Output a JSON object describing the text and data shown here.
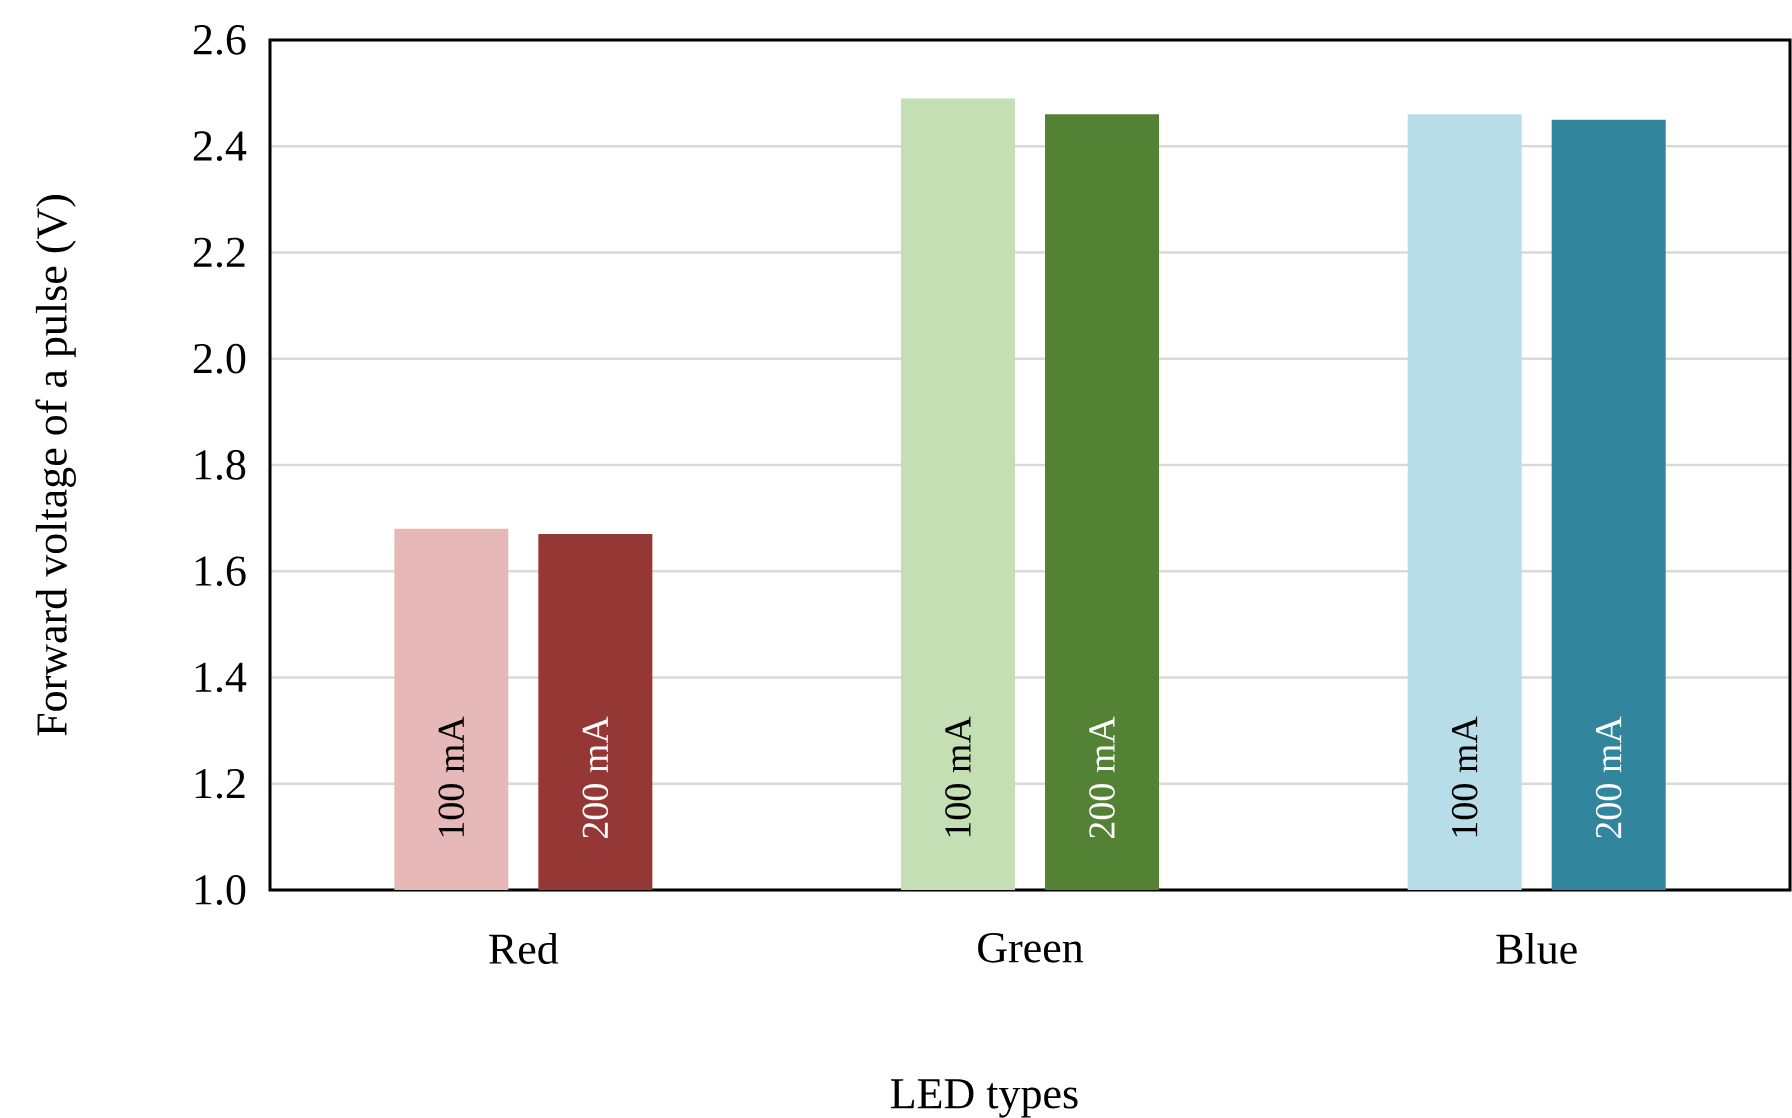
{
  "chart_data": {
    "type": "bar",
    "xlabel": "LED types",
    "ylabel": "Forward voltage of a pulse (V)",
    "categories": [
      "Red",
      "Green",
      "Blue"
    ],
    "series": [
      {
        "name": "100 mA",
        "colors": [
          "#e6b8b7",
          "#c4dfb3",
          "#b7dde8"
        ],
        "values": [
          1.68,
          2.49,
          2.46
        ]
      },
      {
        "name": "200 mA",
        "colors": [
          "#953735",
          "#548235",
          "#31859c"
        ],
        "values": [
          1.67,
          2.46,
          2.45
        ]
      }
    ],
    "ylim": [
      1.0,
      2.6
    ],
    "yticks": [
      {
        "value": 1.0,
        "label": "1.0"
      },
      1.2,
      1.4,
      1.6,
      1.8,
      {
        "value": 2.0,
        "label": "2.0"
      },
      2.2,
      2.4,
      2.6
    ],
    "grid": "y"
  }
}
